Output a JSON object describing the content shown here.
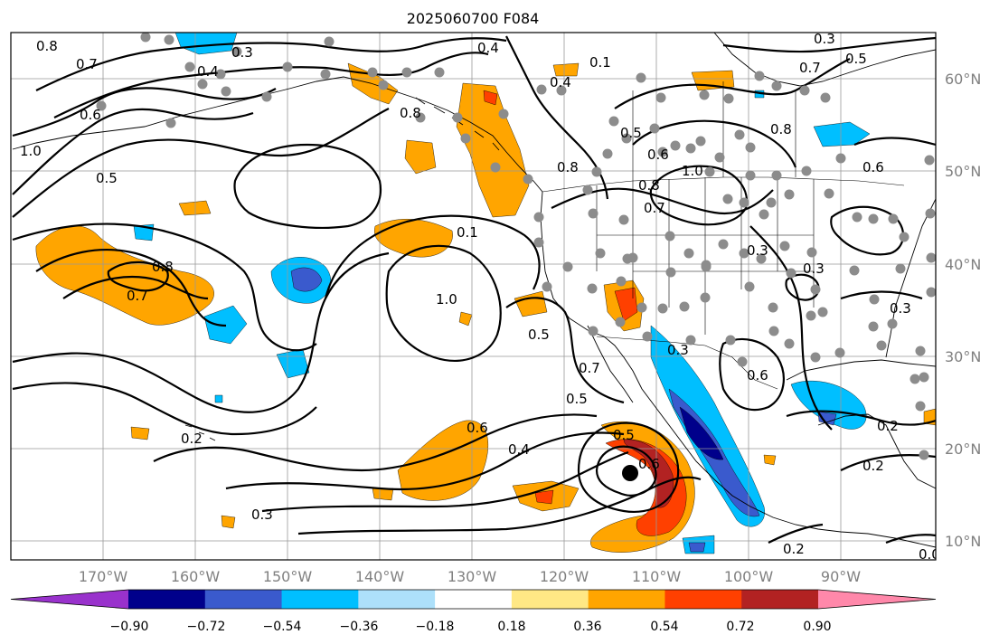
{
  "title": "2025060700 F084",
  "lat_labels": [
    "60°N",
    "50°N",
    "40°N",
    "30°N",
    "20°N",
    "10°N"
  ],
  "lon_labels": [
    "170°W",
    "160°W",
    "150°W",
    "140°W",
    "130°W",
    "120°W",
    "110°W",
    "100°W",
    "90°W"
  ],
  "colorbar": {
    "ticks": [
      "−0.90",
      "−0.72",
      "−0.54",
      "−0.36",
      "−0.18",
      "0.18",
      "0.36",
      "0.54",
      "0.72",
      "0.90"
    ],
    "colors": [
      "#9932cc",
      "#00008b",
      "#3a5acd",
      "#00bfff",
      "#ade0fa",
      "#ffffff",
      "#ffe885",
      "#ffa500",
      "#ff4000",
      "#b22222",
      "#ff88aa"
    ]
  },
  "contour_labels": [
    "0.8",
    "0.7",
    "0.6",
    "1.0",
    "0.5",
    "0.3",
    "0.4",
    "0.4",
    "0.3",
    "0.5",
    "0.7",
    "0.8",
    "0.4",
    "0.5",
    "0.6",
    "0.8",
    "1.0",
    "0.8",
    "0.6",
    "0.8",
    "0.7",
    "0.1",
    "0.8",
    "0.7",
    "1.0",
    "0.5",
    "0.7",
    "0.5",
    "0.3",
    "0.6",
    "0.4",
    "0.5",
    "0.6",
    "0.3",
    "0.2",
    "0.3",
    "0.2",
    "0.0",
    "0.2",
    "0.3",
    "0.6",
    "0.3",
    "0.2",
    "0.1"
  ],
  "map": {
    "field": "contour lines with shaded anomaly",
    "storm_marker": "tropical cyclone center"
  }
}
